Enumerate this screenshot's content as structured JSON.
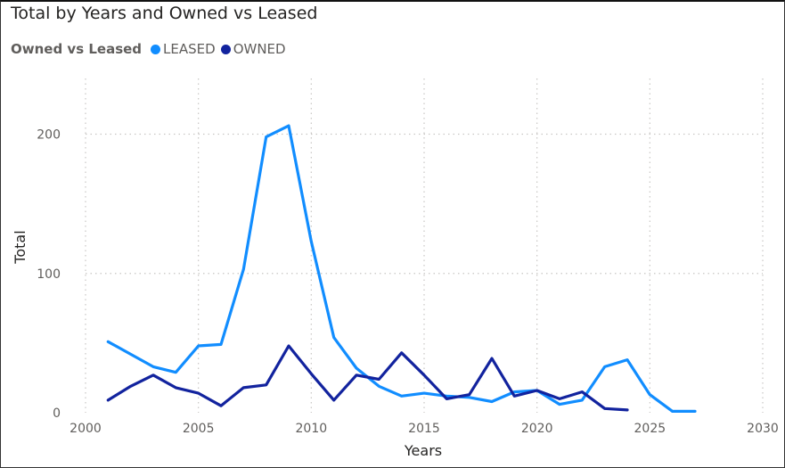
{
  "chart_data": {
    "type": "line",
    "title": "Total by Years and Owned vs Leased",
    "legend_title": "Owned vs Leased",
    "legend_position": "top-left",
    "xlabel": "Years",
    "ylabel": "Total",
    "xlim": [
      2000,
      2030
    ],
    "ylim": [
      0,
      240
    ],
    "x_ticks": [
      2000,
      2005,
      2010,
      2015,
      2020,
      2025,
      2030
    ],
    "y_ticks": [
      0,
      100,
      200
    ],
    "grid": true,
    "series": [
      {
        "name": "LEASED",
        "color": "#118dff",
        "x": [
          2001,
          2002,
          2003,
          2004,
          2005,
          2006,
          2007,
          2008,
          2009,
          2010,
          2011,
          2012,
          2013,
          2014,
          2015,
          2016,
          2017,
          2018,
          2019,
          2020,
          2021,
          2022,
          2023,
          2024,
          2025,
          2026,
          2027
        ],
        "values": [
          51,
          42,
          33,
          29,
          48,
          49,
          103,
          198,
          206,
          123,
          54,
          32,
          19,
          12,
          14,
          12,
          11,
          8,
          15,
          16,
          6,
          9,
          33,
          38,
          13,
          1,
          1
        ]
      },
      {
        "name": "OWNED",
        "color": "#12239e",
        "x": [
          2001,
          2002,
          2003,
          2004,
          2005,
          2006,
          2007,
          2008,
          2009,
          2010,
          2011,
          2012,
          2013,
          2014,
          2015,
          2016,
          2017,
          2018,
          2019,
          2020,
          2021,
          2022,
          2023,
          2024
        ],
        "values": [
          9,
          19,
          27,
          18,
          14,
          5,
          18,
          20,
          48,
          28,
          9,
          27,
          24,
          43,
          27,
          10,
          13,
          39,
          12,
          16,
          10,
          15,
          3,
          2
        ]
      }
    ]
  }
}
